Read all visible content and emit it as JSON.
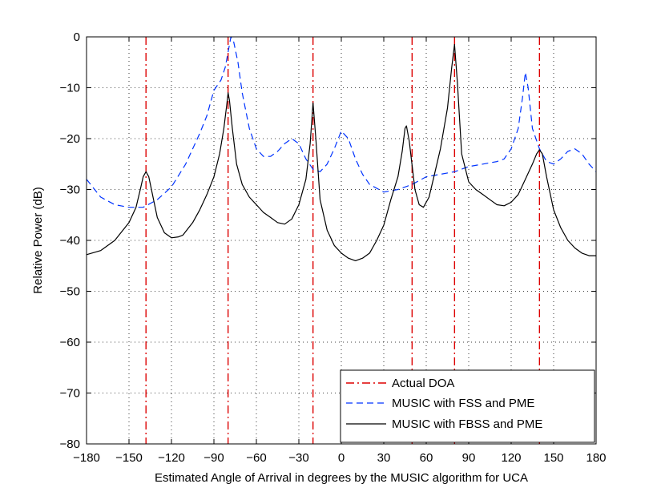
{
  "chart_data": {
    "type": "line",
    "title": "",
    "xlabel": "Estimated Angle of Arrival in degrees by the MUSIC algorithm for UCA",
    "ylabel": "Relative Power (dB)",
    "xlim": [
      -180,
      180
    ],
    "ylim": [
      -80,
      0
    ],
    "xticks": [
      -180,
      -150,
      -120,
      -90,
      -60,
      -30,
      0,
      30,
      60,
      90,
      120,
      150,
      180
    ],
    "yticks": [
      0,
      -10,
      -20,
      -30,
      -40,
      -50,
      -60,
      -70,
      -80
    ],
    "grid": true,
    "legend_position": "bottom-right",
    "actual_doa": {
      "name": "Actual DOA",
      "color": "#dd0000",
      "style": "dash-dot",
      "x": [
        -138,
        -80,
        -20,
        50,
        80,
        140
      ]
    },
    "series": [
      {
        "name": "MUSIC with FSS and PME",
        "color": "#0033ff",
        "style": "dashed",
        "x": [
          -180,
          -170,
          -160,
          -150,
          -140,
          -130,
          -120,
          -110,
          -100,
          -95,
          -90,
          -85,
          -82,
          -80,
          -78,
          -76,
          -73,
          -70,
          -65,
          -60,
          -55,
          -50,
          -45,
          -40,
          -35,
          -30,
          -25,
          -20,
          -15,
          -10,
          -5,
          0,
          5,
          10,
          15,
          20,
          30,
          40,
          50,
          60,
          70,
          80,
          90,
          100,
          110,
          115,
          120,
          125,
          128,
          130,
          132,
          135,
          140,
          145,
          150,
          155,
          160,
          165,
          170,
          175,
          180
        ],
        "values": [
          -28,
          -31.5,
          -33,
          -33.5,
          -33.5,
          -32,
          -29.5,
          -25,
          -19,
          -15.5,
          -10.5,
          -8.5,
          -6,
          -3,
          0.5,
          -1,
          -5,
          -11,
          -18,
          -22,
          -23.5,
          -23.5,
          -22.5,
          -21,
          -20,
          -21,
          -24,
          -26,
          -26.5,
          -25,
          -22,
          -18.5,
          -20,
          -24,
          -27,
          -29,
          -30.5,
          -30,
          -29,
          -27.5,
          -27,
          -26.5,
          -25.5,
          -25,
          -24.5,
          -24,
          -22,
          -18,
          -12,
          -7,
          -10,
          -18,
          -22,
          -24.5,
          -25,
          -24,
          -22.5,
          -22,
          -23,
          -25,
          -26.5
        ]
      },
      {
        "name": "MUSIC with FBSS and PME",
        "color": "#000000",
        "style": "solid",
        "x": [
          -180,
          -170,
          -160,
          -150,
          -145,
          -142,
          -140,
          -138,
          -136,
          -133,
          -130,
          -125,
          -120,
          -115,
          -112,
          -105,
          -100,
          -95,
          -90,
          -86,
          -83,
          -81,
          -80,
          -79,
          -77,
          -74,
          -70,
          -65,
          -60,
          -55,
          -50,
          -45,
          -40,
          -35,
          -30,
          -25,
          -22,
          -20,
          -18,
          -15,
          -10,
          -5,
          0,
          5,
          10,
          15,
          20,
          25,
          30,
          35,
          40,
          43,
          45,
          46,
          48,
          52,
          55,
          58,
          62,
          65,
          70,
          75,
          78,
          80,
          82,
          85,
          90,
          95,
          100,
          105,
          110,
          115,
          120,
          125,
          130,
          135,
          138,
          140,
          142,
          145,
          150,
          155,
          160,
          165,
          170,
          175,
          180
        ],
        "values": [
          -42.8,
          -42,
          -40,
          -36.5,
          -33.5,
          -30,
          -27.5,
          -26.5,
          -27.5,
          -31.5,
          -35.5,
          -38.5,
          -39.5,
          -39.3,
          -39,
          -36.5,
          -34,
          -31,
          -27.5,
          -23,
          -18,
          -13.5,
          -11,
          -12.5,
          -18,
          -25,
          -29,
          -31.5,
          -33,
          -34.5,
          -35.5,
          -36.5,
          -36.8,
          -35.8,
          -33,
          -28,
          -21,
          -13,
          -20,
          -32,
          -38,
          -41,
          -42.5,
          -43.5,
          -44,
          -43.5,
          -42.5,
          -40,
          -37,
          -32,
          -27.5,
          -22.5,
          -18,
          -17.5,
          -20.5,
          -30,
          -33,
          -33.5,
          -31.5,
          -28,
          -22,
          -14,
          -6,
          -1.5,
          -9,
          -23,
          -28.5,
          -30,
          -31,
          -32,
          -33,
          -33.2,
          -32.5,
          -31,
          -28,
          -25,
          -23,
          -22.2,
          -23,
          -27.5,
          -34,
          -37.5,
          -40,
          -41.5,
          -42.5,
          -43,
          -43
        ]
      }
    ]
  }
}
